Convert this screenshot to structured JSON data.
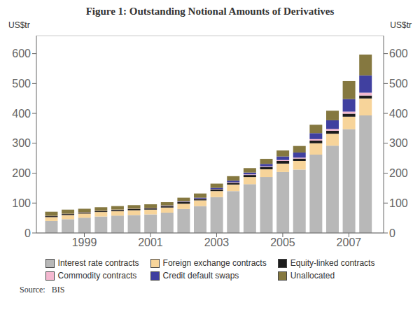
{
  "chart_data": {
    "type": "bar",
    "stacked": true,
    "title": "Figure 1: Outstanding Notional Amounts of Derivatives",
    "ylabel": "US$tr",
    "y2label": "US$tr",
    "source": "Source:   BIS",
    "x": [
      1998.0,
      1998.5,
      1999.0,
      1999.5,
      2000.0,
      2000.5,
      2001.0,
      2001.5,
      2002.0,
      2002.5,
      2003.0,
      2003.5,
      2004.0,
      2004.5,
      2005.0,
      2005.5,
      2006.0,
      2006.5,
      2007.0,
      2007.5
    ],
    "xlim": [
      1997.55,
      2008.05
    ],
    "xticks": [
      1999,
      2001,
      2003,
      2005,
      2007
    ],
    "ylim": [
      0,
      660
    ],
    "yticks": [
      0,
      100,
      200,
      300,
      400,
      500,
      600
    ],
    "y2lim": [
      0,
      660
    ],
    "y2ticks": [
      0,
      100,
      200,
      300,
      400,
      500,
      600
    ],
    "grid": true,
    "legend": "bottom",
    "series": [
      {
        "name": "Interest rate contracts",
        "color": "#b8b8b8",
        "values": [
          40,
          46,
          51,
          55,
          58,
          60,
          62,
          68,
          80,
          90,
          120,
          140,
          163,
          187,
          204,
          212,
          262,
          292,
          347,
          393
        ]
      },
      {
        "name": "Foreign exchange contracts",
        "color": "#f7d49a",
        "values": [
          13,
          14,
          14,
          15,
          15,
          16,
          16,
          17,
          18,
          19,
          20,
          22,
          24,
          26,
          28,
          29,
          38,
          40,
          42,
          57
        ]
      },
      {
        "name": "Equity-linked contracts",
        "color": "#1c1c1c",
        "values": [
          3,
          3,
          3,
          3,
          4,
          4,
          5,
          5,
          5,
          5,
          6,
          6,
          7,
          8,
          9,
          8,
          9,
          10,
          10,
          10
        ]
      },
      {
        "name": "Commodity contracts",
        "color": "#f4b8d0",
        "values": [
          1,
          1,
          1,
          1,
          1,
          1,
          1,
          1,
          1,
          1,
          1,
          2,
          2,
          2,
          3,
          3,
          5,
          6,
          7,
          9
        ]
      },
      {
        "name": "Credit default swaps",
        "color": "#4040a0",
        "values": [
          0,
          0,
          0,
          0,
          0,
          0,
          0,
          1,
          2,
          3,
          4,
          5,
          6,
          8,
          12,
          17,
          20,
          29,
          42,
          58
        ]
      },
      {
        "name": "Unallocated",
        "color": "#857840",
        "values": [
          14,
          14,
          12,
          12,
          12,
          12,
          12,
          11,
          12,
          14,
          14,
          15,
          15,
          17,
          20,
          22,
          28,
          32,
          60,
          70
        ]
      }
    ]
  }
}
